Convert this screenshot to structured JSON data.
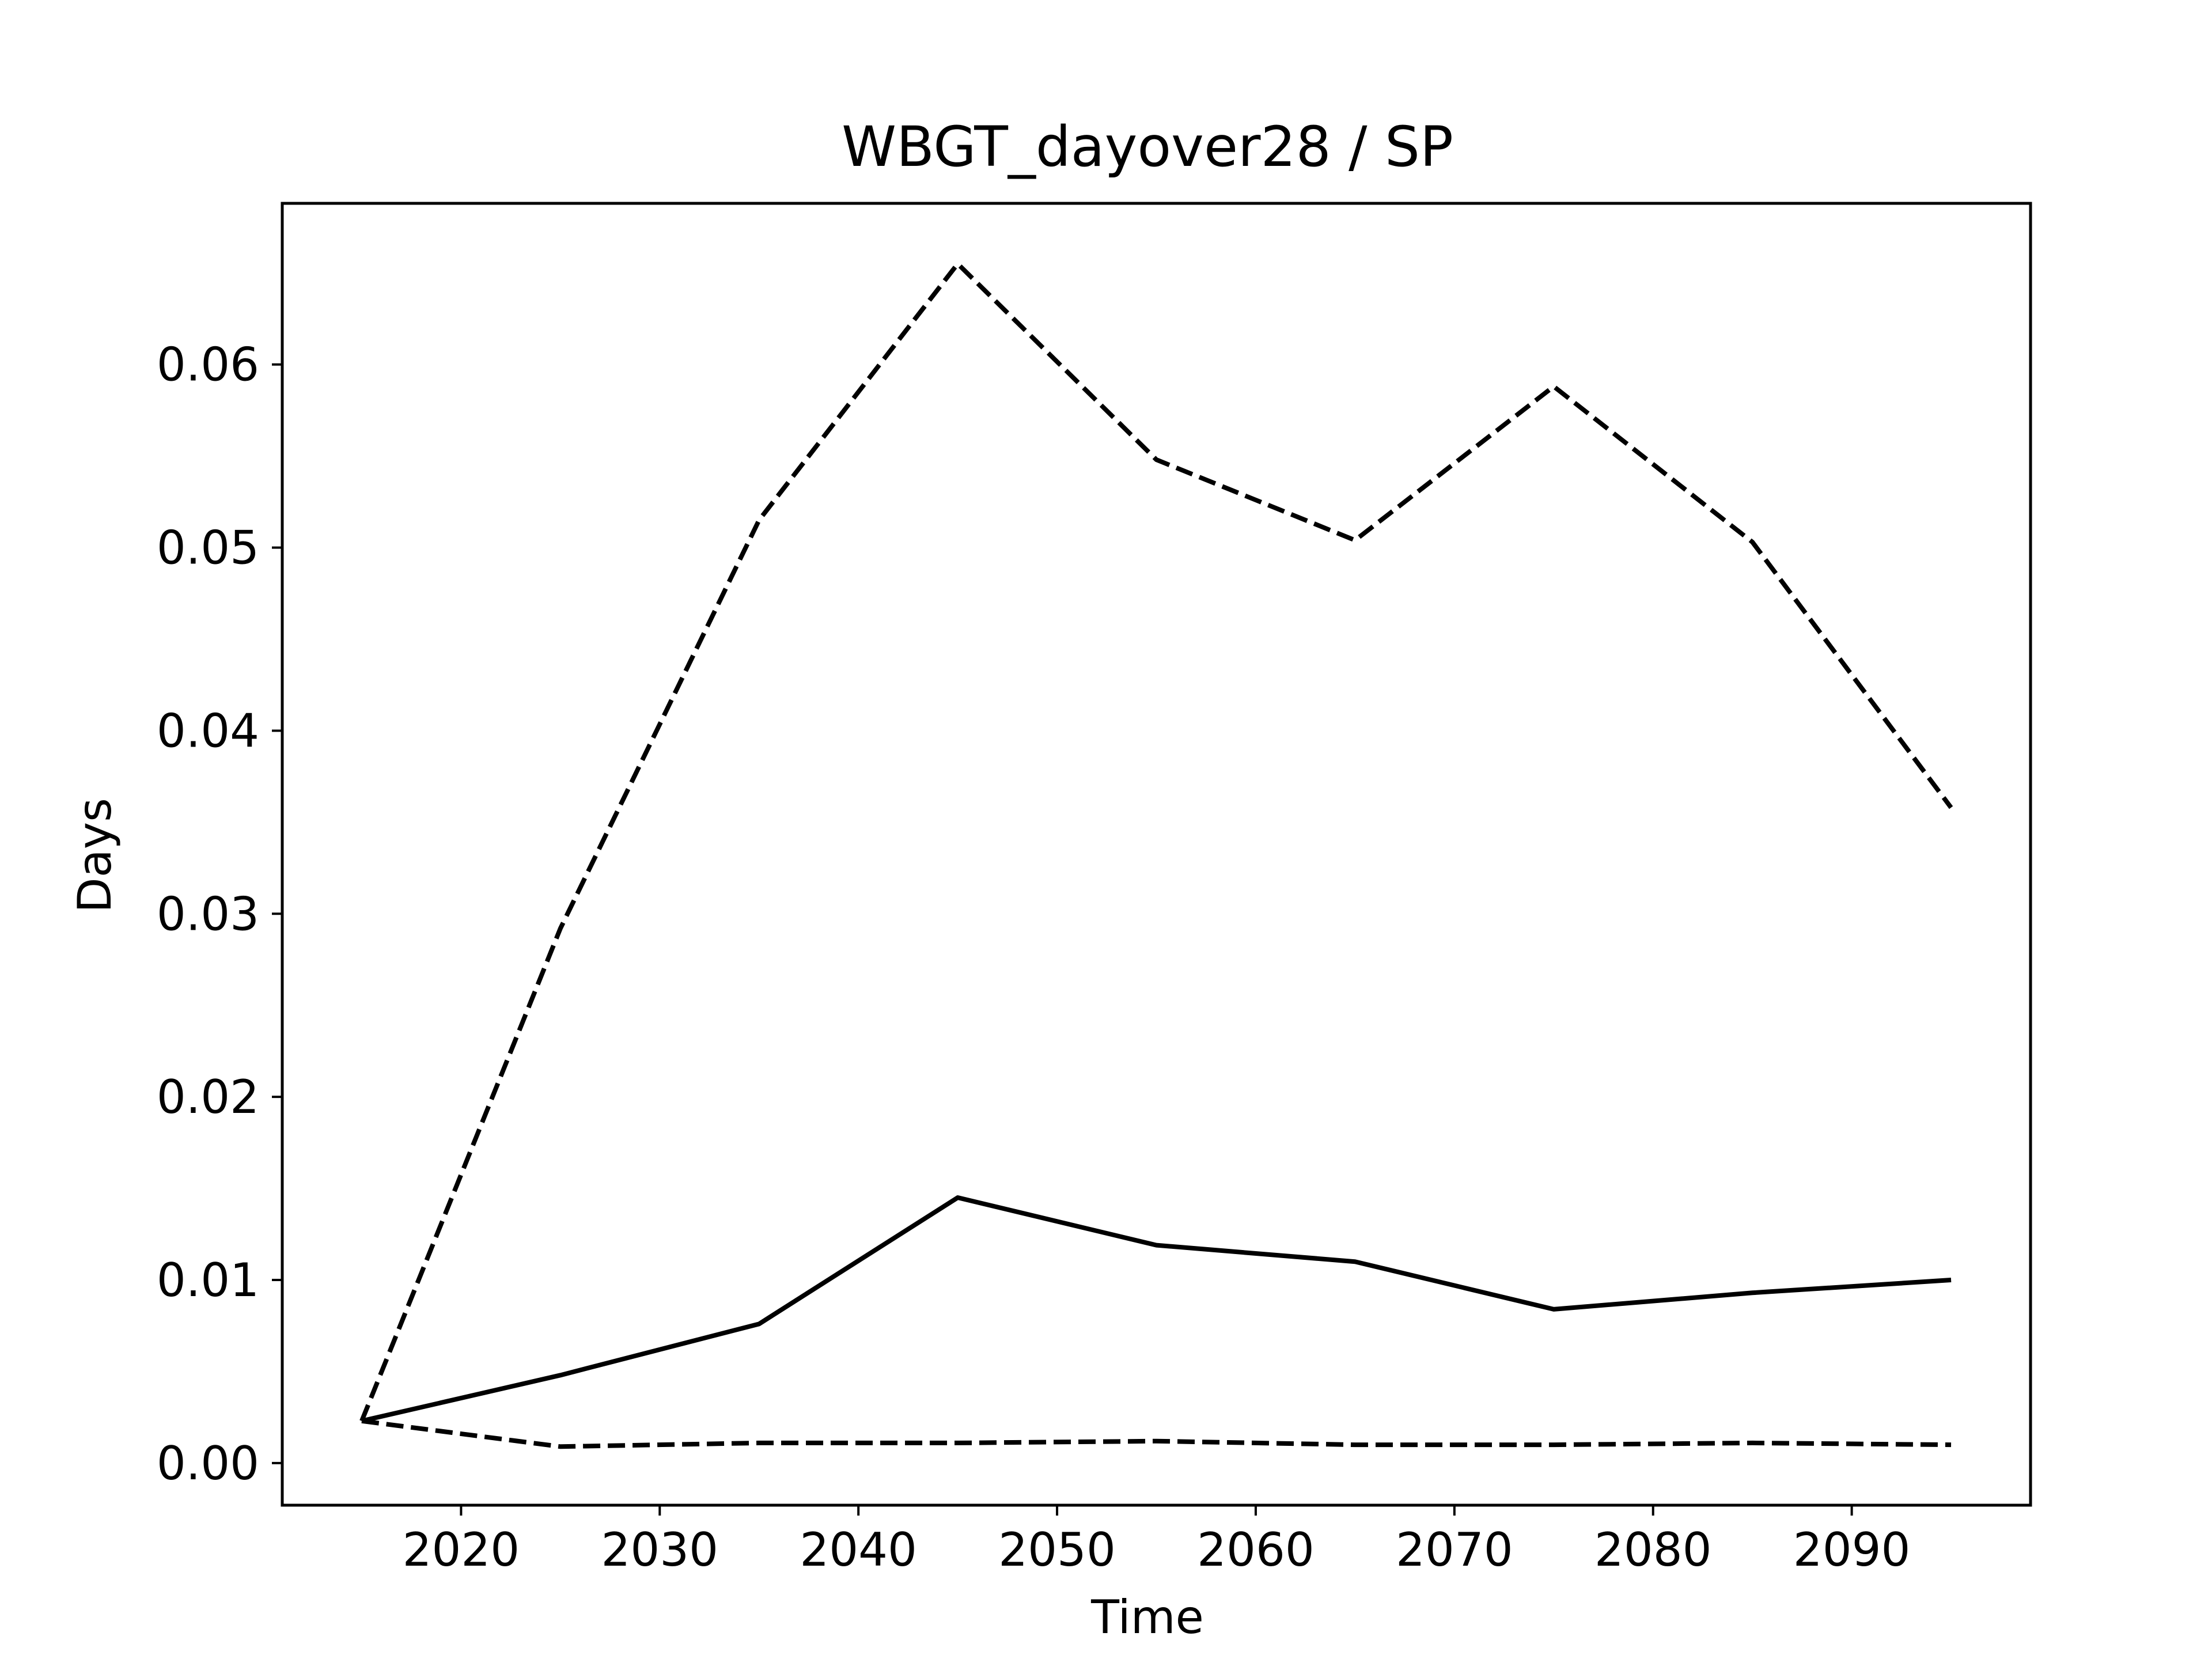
{
  "chart_data": {
    "type": "line",
    "title": "WBGT_dayover28 / SP",
    "xlabel": "Time",
    "ylabel": "Days",
    "xlim": [
      2011,
      2099
    ],
    "ylim": [
      -0.0023,
      0.0688
    ],
    "xticks": [
      2020,
      2030,
      2040,
      2050,
      2060,
      2070,
      2080,
      2090
    ],
    "xtick_labels": [
      "2020",
      "2030",
      "2040",
      "2050",
      "2060",
      "2070",
      "2080",
      "2090"
    ],
    "yticks": [
      0.0,
      0.01,
      0.02,
      0.03,
      0.04,
      0.05,
      0.06
    ],
    "ytick_labels": [
      "0.00",
      "0.01",
      "0.02",
      "0.03",
      "0.04",
      "0.05",
      "0.06"
    ],
    "grid": false,
    "legend": false,
    "x": [
      2015,
      2025,
      2035,
      2045,
      2055,
      2065,
      2075,
      2085,
      2095
    ],
    "series": [
      {
        "style": "solid",
        "color": "#000000",
        "values": [
          0.0023,
          0.0048,
          0.0076,
          0.0145,
          0.0119,
          0.011,
          0.0084,
          0.0093,
          0.01
        ]
      },
      {
        "style": "dashed",
        "color": "#000000",
        "values": [
          0.0023,
          0.0292,
          0.0515,
          0.0655,
          0.0548,
          0.0504,
          0.0588,
          0.0503,
          0.0358
        ]
      },
      {
        "style": "dashed",
        "color": "#000000",
        "values": [
          0.0023,
          0.0009,
          0.0011,
          0.0011,
          0.0012,
          0.001,
          0.001,
          0.0011,
          0.001
        ]
      }
    ]
  }
}
